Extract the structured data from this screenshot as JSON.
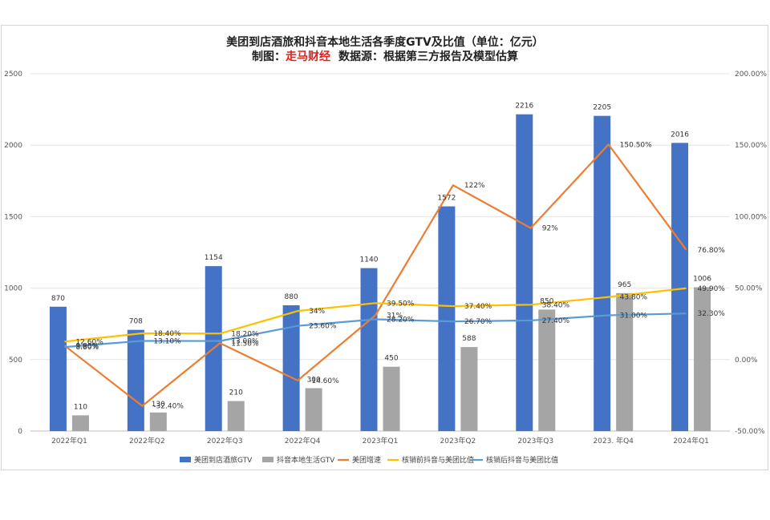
{
  "chart_data": {
    "type": "bar+line",
    "title": "美团到店酒旅和抖音本地生活各季度GTV及比值（单位：亿元）",
    "subtitle_prefix": "制图：",
    "subtitle_brand": "走马财经",
    "subtitle_suffix": "数据源：根据第三方报告及模型估算",
    "categories": [
      "2022年Q1",
      "2022年Q2",
      "2022年Q3",
      "2022年Q4",
      "2023年Q1",
      "2023年Q2",
      "2023年Q3",
      "2023. 年Q4",
      "2024年Q1"
    ],
    "y_left": {
      "min": 0,
      "max": 2500,
      "ticks": [
        "0",
        "500",
        "1000",
        "1500",
        "2000",
        "2500"
      ]
    },
    "y_right": {
      "min": -50,
      "max": 200,
      "ticks": [
        "-50.00%",
        "0.00%",
        "50.00%",
        "100.00%",
        "150.00%",
        "200.00%"
      ]
    },
    "bar_series": [
      {
        "name": "美团到店酒旅GTV",
        "color": "#4472C4",
        "values": [
          870,
          708,
          1154,
          880,
          1140,
          1572,
          2216,
          2205,
          2016
        ],
        "labels": [
          "870",
          "708",
          "1154",
          "880",
          "1140",
          "1572",
          "2216",
          "2205",
          "2016"
        ]
      },
      {
        "name": "抖音本地生活GTV",
        "color": "#A5A5A5",
        "values": [
          110,
          130,
          210,
          300,
          450,
          588,
          850,
          965,
          1006
        ],
        "labels": [
          "110",
          "130",
          "210",
          "300",
          "450",
          "588",
          "850",
          "965",
          "1006"
        ]
      }
    ],
    "line_series": [
      {
        "name": "美团增速",
        "color": "#ED7D31",
        "values": [
          9.8,
          -32.4,
          11.5,
          -14.6,
          31,
          122,
          92,
          150.5,
          76.8
        ],
        "labels": [
          "9.80%",
          "-32.40%",
          "11.50%",
          "-14.60%",
          "31%",
          "122%",
          "92%",
          "150.50%",
          "76.80%"
        ]
      },
      {
        "name": "核销前抖音与美团比值",
        "color": "#FFC000",
        "values": [
          12.6,
          18.4,
          18.2,
          34,
          39.5,
          37.4,
          38.4,
          43.8,
          49.9
        ],
        "labels": [
          "12.60%",
          "18.40%",
          "18.20%",
          "34%",
          "39.50%",
          "37.40%",
          "38.40%",
          "43.80%",
          "49.90%"
        ]
      },
      {
        "name": "核销后抖音与美团比值",
        "color": "#5B9BD5",
        "values": [
          8.8,
          13.1,
          13.0,
          23.6,
          28.2,
          26.7,
          27.4,
          31.0,
          32.3
        ],
        "labels": [
          "8.80%",
          "13.10%",
          "13.00%",
          "23.60%",
          "28.20%",
          "26.70%",
          "27.40%",
          "31.00%",
          "32.30%"
        ]
      }
    ],
    "grid": true,
    "legend_position": "bottom"
  }
}
